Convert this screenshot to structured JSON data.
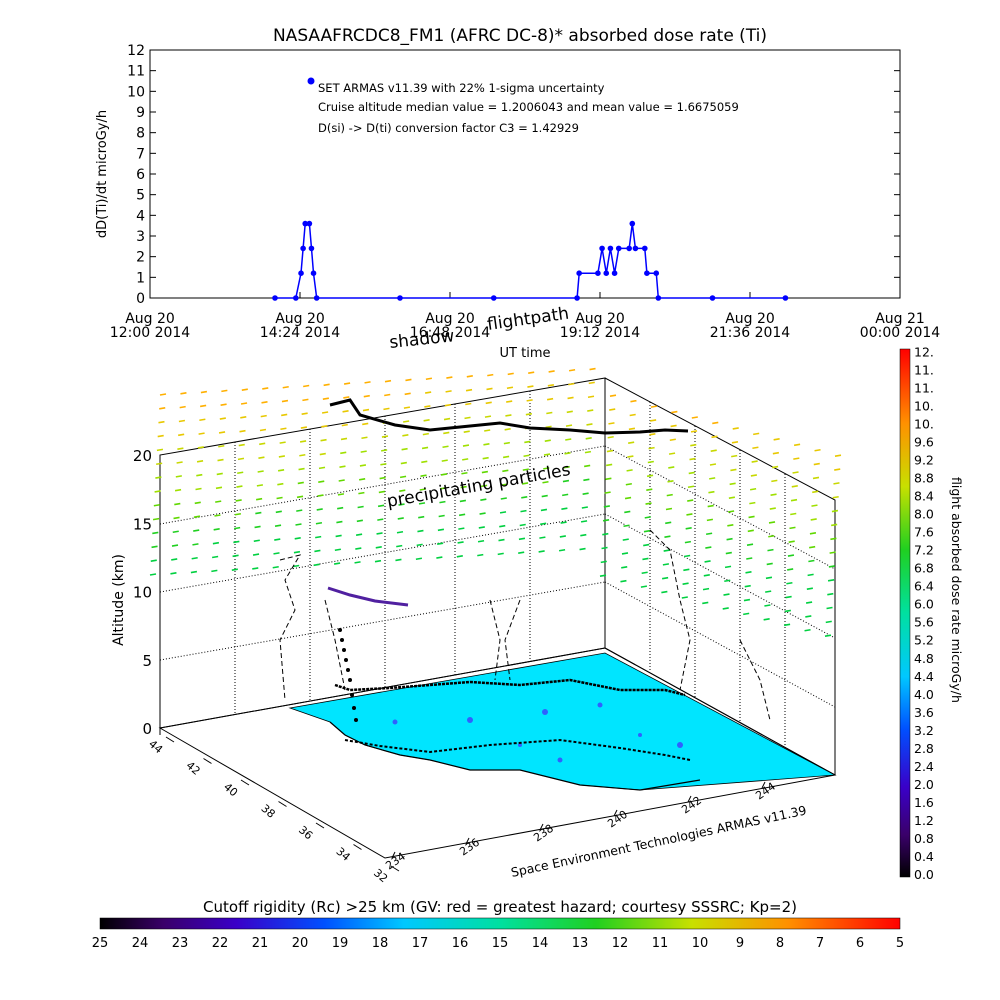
{
  "chart_data": [
    {
      "type": "scatter",
      "title": "NASAAFRCDC8_FM1 (AFRC DC-8)* absorbed dose rate (Ti)",
      "ylabel": "dD(Ti)/dt microGy/h",
      "xlabel": "UT time",
      "ylim": [
        0,
        12
      ],
      "yticks": [
        "0",
        "1",
        "2",
        "3",
        "4",
        "5",
        "6",
        "7",
        "8",
        "9",
        "10",
        "11",
        "12"
      ],
      "xticks": [
        {
          "line1": "Aug 20",
          "line2": "12:00 2014"
        },
        {
          "line1": "Aug 20",
          "line2": "14:24 2014"
        },
        {
          "line1": "Aug 20",
          "line2": "16:48 2014"
        },
        {
          "line1": "Aug 20",
          "line2": "19:12 2014"
        },
        {
          "line1": "Aug 20",
          "line2": "21:36 2014"
        },
        {
          "line1": "Aug 21",
          "line2": "00:00 2014"
        }
      ],
      "series_color": "#0000ff",
      "annotations": [
        "SET ARMAS v11.39 with 22% 1-sigma uncertainty",
        "Cruise altitude median value = 1.2006043 and mean value = 1.6675059",
        "D(si) -> D(ti) conversion factor C3 = 1.42929"
      ],
      "points": [
        {
          "t": "14:00",
          "v": 0
        },
        {
          "t": "14:20",
          "v": 0
        },
        {
          "t": "14:25",
          "v": 1.2
        },
        {
          "t": "14:27",
          "v": 2.4
        },
        {
          "t": "14:29",
          "v": 3.6
        },
        {
          "t": "14:33",
          "v": 3.6
        },
        {
          "t": "14:35",
          "v": 2.4
        },
        {
          "t": "14:37",
          "v": 1.2
        },
        {
          "t": "14:40",
          "v": 0
        },
        {
          "t": "16:00",
          "v": 0
        },
        {
          "t": "17:30",
          "v": 0
        },
        {
          "t": "18:50",
          "v": 0
        },
        {
          "t": "18:52",
          "v": 1.2
        },
        {
          "t": "19:10",
          "v": 1.2
        },
        {
          "t": "19:14",
          "v": 2.4
        },
        {
          "t": "19:18",
          "v": 1.2
        },
        {
          "t": "19:22",
          "v": 2.4
        },
        {
          "t": "19:26",
          "v": 1.2
        },
        {
          "t": "19:30",
          "v": 2.4
        },
        {
          "t": "19:40",
          "v": 2.4
        },
        {
          "t": "19:43",
          "v": 3.6
        },
        {
          "t": "19:46",
          "v": 2.4
        },
        {
          "t": "19:55",
          "v": 2.4
        },
        {
          "t": "19:57",
          "v": 1.2
        },
        {
          "t": "20:06",
          "v": 1.2
        },
        {
          "t": "20:08",
          "v": 0
        },
        {
          "t": "21:00",
          "v": 0
        },
        {
          "t": "22:10",
          "v": 0
        }
      ]
    },
    {
      "type": "3d-map",
      "zlabel": "Altitude (km)",
      "zticks": [
        "0",
        "5",
        "10",
        "15",
        "20"
      ],
      "lat_ticks": [
        "44",
        "42",
        "40",
        "38",
        "36",
        "34",
        "32"
      ],
      "lon_ticks": [
        "234",
        "236",
        "238",
        "240",
        "242",
        "244"
      ],
      "annotations": {
        "flightpath": "flightpath",
        "shadow": "shadow",
        "particles": "precipitating particles",
        "credit": "Space Environment Technologies ARMAS v11.39"
      },
      "surface_color": "#00e5ff"
    },
    {
      "type": "colorbar",
      "orientation": "vertical",
      "label": "flight absorbed dose rate microGy/h",
      "ticks": [
        "0.0",
        "0.4",
        "0.8",
        "1.2",
        "1.6",
        "2.0",
        "2.4",
        "2.8",
        "3.2",
        "3.6",
        "4.0",
        "4.4",
        "4.8",
        "5.2",
        "5.6",
        "6.0",
        "6.4",
        "6.8",
        "7.2",
        "7.6",
        "8.0",
        "8.4",
        "8.8",
        "9.2",
        "9.6",
        "10.",
        "10.",
        "11.",
        "11.",
        "12."
      ]
    },
    {
      "type": "colorbar",
      "orientation": "horizontal",
      "label": "Cutoff rigidity (Rc) >25 km (GV: red = greatest hazard; courtesy SSSRC; Kp=2)",
      "ticks": [
        "25",
        "24",
        "23",
        "22",
        "21",
        "20",
        "19",
        "18",
        "17",
        "16",
        "15",
        "14",
        "13",
        "12",
        "11",
        "10",
        "9",
        "8",
        "7",
        "6",
        "5"
      ]
    }
  ]
}
